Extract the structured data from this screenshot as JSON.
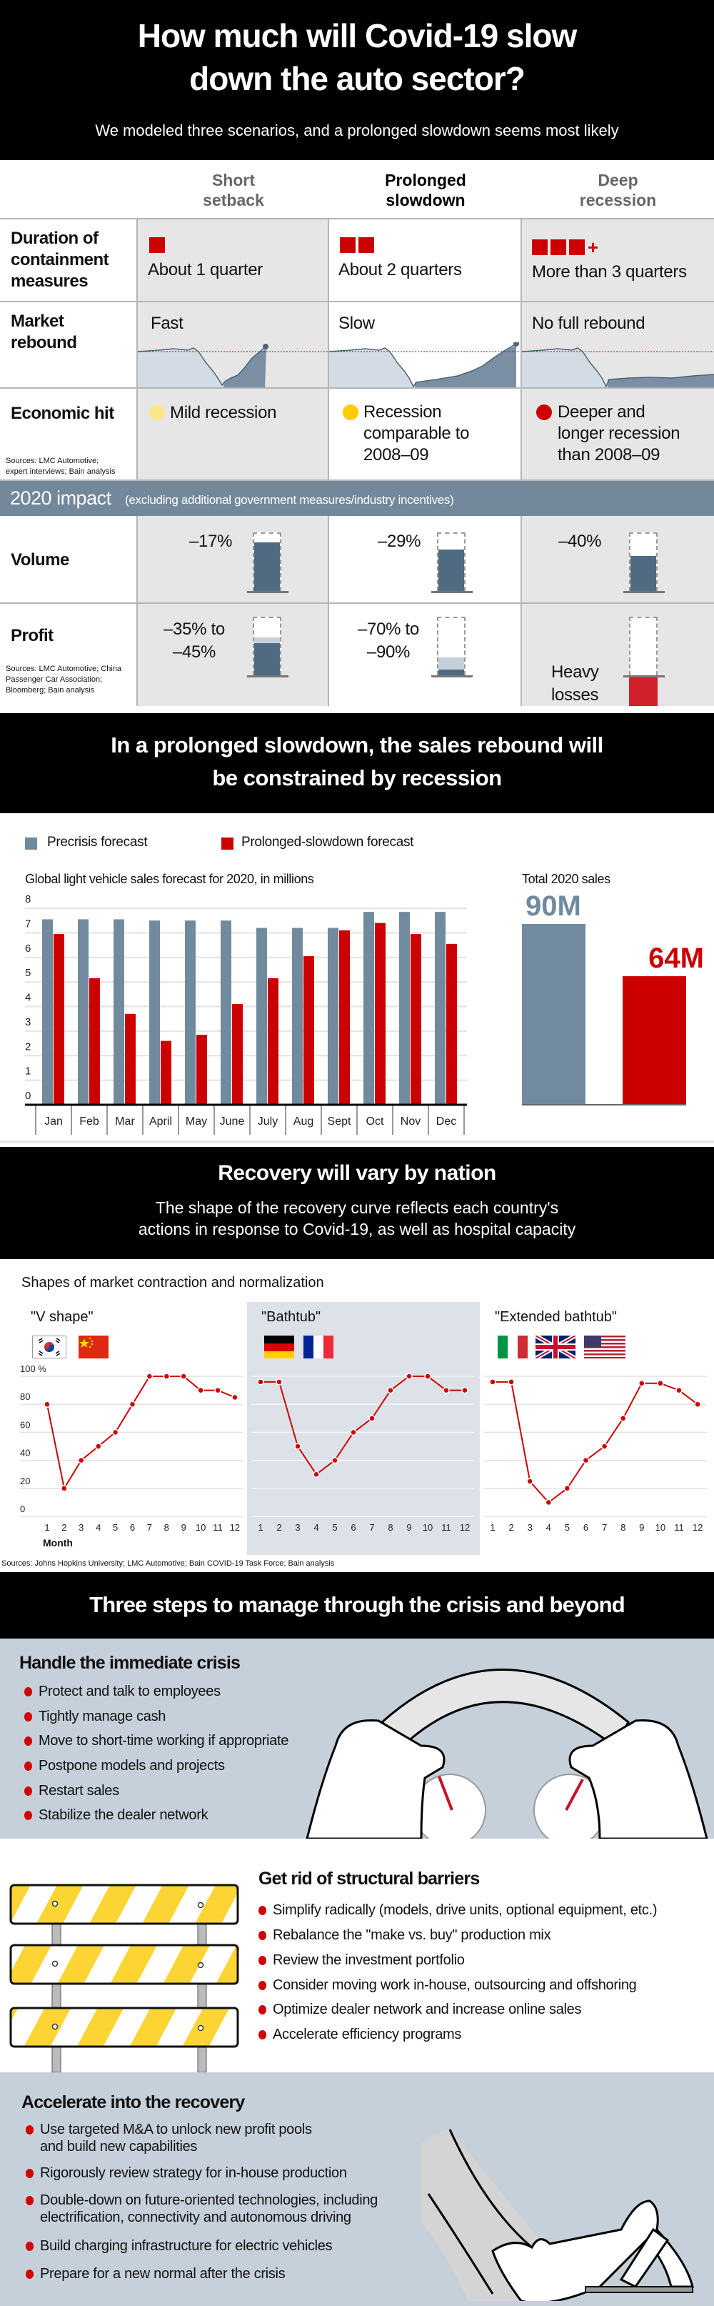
{
  "header": {
    "title_line1": "How much will Covid-19 slow",
    "title_line2": "down the auto sector?",
    "subtitle": "We modeled three scenarios, and a prolonged slowdown seems most likely"
  },
  "scenarios": {
    "columns": [
      "Short setback",
      "Prolonged slowdown",
      "Deep recession"
    ],
    "column_lines": [
      [
        "Short",
        "setback"
      ],
      [
        "Prolonged",
        "slowdown"
      ],
      [
        "Deep",
        "recession"
      ]
    ],
    "rows": {
      "duration": {
        "label_lines": [
          "Duration of",
          "containment",
          "measures"
        ],
        "values": [
          "About 1 quarter",
          "About 2 quarters",
          "More than 3 quarters"
        ],
        "quarters": [
          1,
          2,
          3
        ],
        "plus_icon": "plus-icon"
      },
      "rebound": {
        "label_lines": [
          "Market",
          "rebound"
        ],
        "values": [
          "Fast",
          "Slow",
          "No full rebound"
        ]
      },
      "economic": {
        "label": "Economic hit",
        "values": [
          [
            "Mild recession"
          ],
          [
            "Recession",
            "comparable to",
            "2008–09"
          ],
          [
            "Deeper and",
            "longer recession",
            "than 2008–09"
          ]
        ],
        "dot_colors": [
          "#fde68a",
          "#ffcc00",
          "#cc0000"
        ]
      }
    },
    "sources1_lines": [
      "Sources: LMC Automotive;",
      "expert interviews; Bain analysis"
    ],
    "impact": {
      "title": "2020 impact",
      "note": "(excluding additional government measures/industry incentives)"
    },
    "volume": {
      "label": "Volume",
      "values": [
        "–17%",
        "–29%",
        "–40%"
      ],
      "change_pct": [
        -17,
        -29,
        -40
      ]
    },
    "profit": {
      "label": "Profit",
      "values": [
        [
          "–35% to",
          "–45%"
        ],
        [
          "–70% to",
          "–90%"
        ],
        [
          "Heavy",
          "losses"
        ]
      ],
      "ranges_pct": [
        [
          -35,
          -45
        ],
        [
          -70,
          -90
        ],
        null
      ]
    },
    "sources2_lines": [
      "Sources: LMC Automotive; China",
      "Passenger Car Association;",
      "Bloomberg; Bain analysis"
    ]
  },
  "section2": {
    "title_line1": "In a prolonged slowdown, the sales rebound will",
    "title_line2": "be constrained by recession"
  },
  "chart_data": [
    {
      "type": "bar",
      "title": "Global light vehicle sales forecast for 2020, in millions",
      "categories": [
        "Jan",
        "Feb",
        "Mar",
        "April",
        "May",
        "June",
        "July",
        "Aug",
        "Sept",
        "Oct",
        "Nov",
        "Dec"
      ],
      "series": [
        {
          "name": "Precrisis forecast",
          "color": "#728a9e",
          "values": [
            7.55,
            7.55,
            7.55,
            7.5,
            7.5,
            7.5,
            7.2,
            7.2,
            7.2,
            7.85,
            7.85,
            7.85
          ]
        },
        {
          "name": "Prolonged-slowdown forecast",
          "color": "#cc0000",
          "values": [
            6.95,
            5.15,
            3.7,
            2.6,
            2.85,
            4.1,
            5.15,
            6.05,
            7.1,
            7.4,
            6.95,
            6.55
          ]
        }
      ],
      "yticks": [
        0,
        1,
        2,
        3,
        4,
        5,
        6,
        7,
        8
      ],
      "ylim": [
        0,
        8
      ],
      "grid": true,
      "legend": "top-left"
    },
    {
      "type": "bar",
      "title": "Total 2020 sales",
      "categories": [
        "Precrisis forecast",
        "Prolonged-slowdown forecast"
      ],
      "values": [
        90,
        64
      ],
      "labels": [
        "90M",
        "64M"
      ],
      "colors": [
        "#728a9e",
        "#cc0000"
      ]
    },
    {
      "type": "line",
      "title": "Shapes of market contraction and normalization",
      "xlabel": "Month",
      "yunit": "%",
      "x": [
        1,
        2,
        3,
        4,
        5,
        6,
        7,
        8,
        9,
        10,
        11,
        12
      ],
      "yticks": [
        0,
        20,
        40,
        60,
        80,
        100
      ],
      "ylim": [
        0,
        100
      ],
      "grid": true,
      "series": [
        {
          "name": "\"V shape\"",
          "countries": [
            "South Korea",
            "China"
          ],
          "values": [
            80,
            20,
            40,
            50,
            60,
            80,
            100,
            100,
            100,
            90,
            90,
            85
          ]
        },
        {
          "name": "\"Bathtub\"",
          "countries": [
            "Germany",
            "France"
          ],
          "values": [
            96,
            96,
            50,
            30,
            40,
            60,
            70,
            90,
            100,
            100,
            90,
            90
          ]
        },
        {
          "name": "\"Extended bathtub\"",
          "countries": [
            "Italy",
            "United Kingdom",
            "United States"
          ],
          "values": [
            96,
            96,
            25,
            10,
            20,
            40,
            50,
            70,
            95,
            95,
            90,
            80
          ]
        }
      ],
      "line_color": "#d00000"
    }
  ],
  "section3": {
    "title": "Recovery will vary by nation",
    "subtitle_line1": "The shape of the recovery curve reflects each country's",
    "subtitle_line2": "actions in response to Covid-19, as well as hospital capacity",
    "sources": "Sources: Johns Hopkins University; LMC Automotive; Bain COVID-19 Task Force; Bain analysis"
  },
  "steps": {
    "title": "Three steps to manage through the crisis and beyond",
    "step1": {
      "title": "Handle the immediate crisis",
      "items": [
        "Protect and talk to employees",
        "Tightly manage cash",
        "Move to short-time working if appropriate",
        "Postpone models and projects",
        "Restart sales",
        "Stabilize the dealer network"
      ]
    },
    "step2": {
      "title": "Get rid of structural barriers",
      "items": [
        "Simplify radically (models, drive units, optional equipment, etc.)",
        "Rebalance the \"make vs. buy\" production mix",
        "Review the investment portfolio",
        "Consider moving work in-house, outsourcing and offshoring",
        "Optimize dealer network and increase online sales",
        "Accelerate efficiency programs"
      ]
    },
    "step3": {
      "title": "Accelerate into the recovery",
      "items": [
        [
          "Use targeted M&A to unlock new profit pools",
          "and build new capabilities"
        ],
        [
          "Rigorously review strategy for in-house production"
        ],
        [
          "Double-down on future-oriented technologies, including",
          "electrification, connectivity and autonomous driving"
        ],
        [
          "Build charging infrastructure for electric vehicles"
        ],
        [
          "Prepare for a new normal after the crisis"
        ]
      ]
    }
  },
  "colors": {
    "red": "#cc0000",
    "slate": "#728a9e",
    "panel": "#c5d0da",
    "yellow": "#fcd535"
  }
}
